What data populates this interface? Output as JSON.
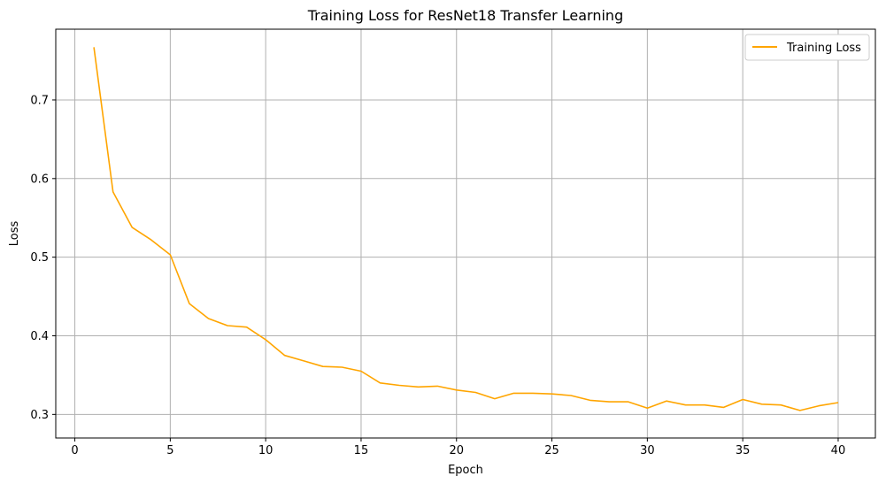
{
  "chart_data": {
    "type": "line",
    "title": "Training Loss for ResNet18 Transfer Learning",
    "xlabel": "Epoch",
    "ylabel": "Loss",
    "xlim": [
      -1,
      41.95
    ],
    "ylim": [
      0.27,
      0.79
    ],
    "xticks": [
      0,
      5,
      10,
      15,
      20,
      25,
      30,
      35,
      40
    ],
    "yticks": [
      0.3,
      0.4,
      0.5,
      0.6,
      0.7
    ],
    "ytick_labels": [
      "0.3",
      "0.4",
      "0.5",
      "0.6",
      "0.7"
    ],
    "grid": true,
    "legend_position": "top-right",
    "series": [
      {
        "name": "Training Loss",
        "color": "#ffa500",
        "x": [
          1,
          2,
          3,
          4,
          5,
          6,
          7,
          8,
          9,
          10,
          11,
          12,
          13,
          14,
          15,
          16,
          17,
          18,
          19,
          20,
          21,
          22,
          23,
          24,
          25,
          26,
          27,
          28,
          29,
          30,
          31,
          32,
          33,
          34,
          35,
          36,
          37,
          38,
          39,
          40
        ],
        "y": [
          0.767,
          0.583,
          0.538,
          0.522,
          0.503,
          0.441,
          0.422,
          0.413,
          0.411,
          0.395,
          0.375,
          0.368,
          0.361,
          0.36,
          0.355,
          0.34,
          0.337,
          0.335,
          0.336,
          0.331,
          0.328,
          0.32,
          0.327,
          0.327,
          0.326,
          0.324,
          0.318,
          0.316,
          0.316,
          0.308,
          0.317,
          0.312,
          0.312,
          0.309,
          0.319,
          0.313,
          0.312,
          0.305,
          0.311,
          0.315
        ]
      }
    ]
  }
}
